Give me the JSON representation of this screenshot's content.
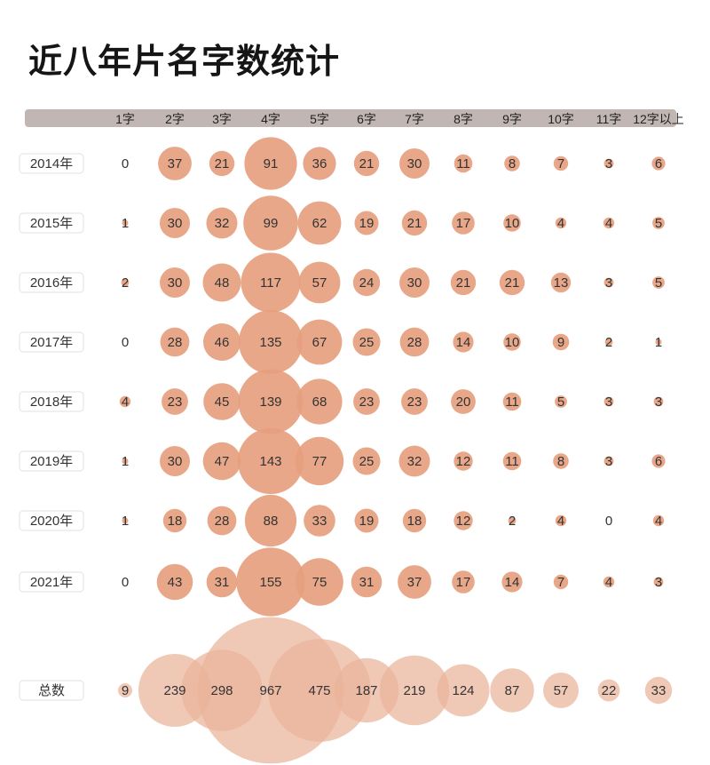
{
  "title": "近八年片名字数统计",
  "chart_data": {
    "type": "bubble-matrix",
    "title": "近八年片名字数统计",
    "columns": [
      "1字",
      "2字",
      "3字",
      "4字",
      "5字",
      "6字",
      "7字",
      "8字",
      "9字",
      "10字",
      "11字",
      "12字以上"
    ],
    "rows": [
      {
        "label": "2014年",
        "values": [
          0,
          37,
          21,
          91,
          36,
          21,
          30,
          11,
          8,
          7,
          3,
          6
        ]
      },
      {
        "label": "2015年",
        "values": [
          1,
          30,
          32,
          99,
          62,
          19,
          21,
          17,
          10,
          4,
          4,
          5
        ]
      },
      {
        "label": "2016年",
        "values": [
          2,
          30,
          48,
          117,
          57,
          24,
          30,
          21,
          21,
          13,
          3,
          5
        ]
      },
      {
        "label": "2017年",
        "values": [
          0,
          28,
          46,
          135,
          67,
          25,
          28,
          14,
          10,
          9,
          2,
          1
        ]
      },
      {
        "label": "2018年",
        "values": [
          4,
          23,
          45,
          139,
          68,
          23,
          23,
          20,
          11,
          5,
          3,
          3
        ]
      },
      {
        "label": "2019年",
        "values": [
          1,
          30,
          47,
          143,
          77,
          25,
          32,
          12,
          11,
          8,
          3,
          6
        ]
      },
      {
        "label": "2020年",
        "values": [
          1,
          18,
          28,
          88,
          33,
          19,
          18,
          12,
          2,
          4,
          0,
          4
        ]
      },
      {
        "label": "2021年",
        "values": [
          0,
          43,
          31,
          155,
          75,
          31,
          37,
          17,
          14,
          7,
          4,
          3
        ]
      }
    ],
    "total": {
      "label": "总数",
      "values": [
        9,
        239,
        298,
        967,
        475,
        187,
        219,
        124,
        87,
        57,
        22,
        33
      ]
    },
    "colors": {
      "year_bubble": "#e6a07e",
      "total_bubble": "#eab39a",
      "header_bar": "#c2b6b2"
    }
  }
}
